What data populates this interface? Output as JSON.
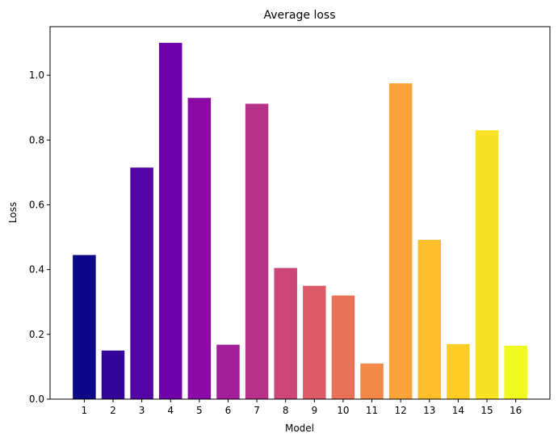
{
  "chart_data": {
    "type": "bar",
    "title": "Average loss",
    "xlabel": "Model",
    "ylabel": "Loss",
    "categories": [
      "1",
      "2",
      "3",
      "4",
      "5",
      "6",
      "7",
      "8",
      "9",
      "10",
      "11",
      "12",
      "13",
      "14",
      "15",
      "16"
    ],
    "values": [
      0.445,
      0.15,
      0.715,
      1.1,
      0.93,
      0.168,
      0.912,
      0.405,
      0.35,
      0.32,
      0.11,
      0.975,
      0.492,
      0.17,
      0.83,
      0.165
    ],
    "colors": [
      "#0d0887",
      "#350498",
      "#5302a3",
      "#6e00a8",
      "#8b0aa5",
      "#a31e9a",
      "#b83289",
      "#cc4778",
      "#db5c68",
      "#e97158",
      "#f48849",
      "#fba238",
      "#febd2a",
      "#fcce25",
      "#f7e225",
      "#f0f921"
    ],
    "ylim": [
      0,
      1.15
    ],
    "yticks": [
      0.0,
      0.2,
      0.4,
      0.6,
      0.8,
      1.0
    ],
    "ytick_labels": [
      "0.0",
      "0.2",
      "0.4",
      "0.6",
      "0.8",
      "1.0"
    ],
    "grid": false,
    "colormap": "plasma"
  }
}
